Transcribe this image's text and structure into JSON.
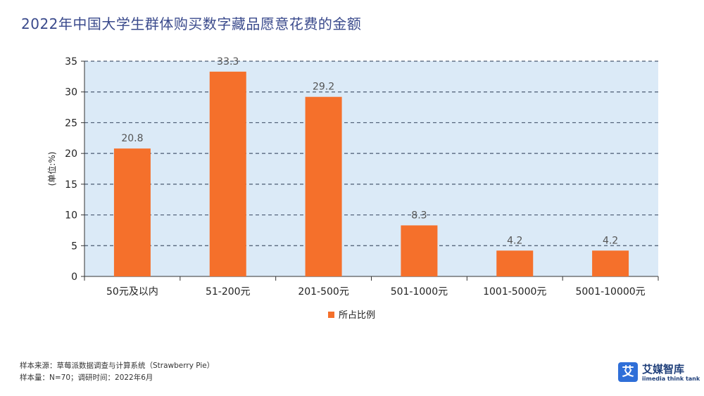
{
  "title": "2022年中国大学生群体购买数字藏品愿意花费的金额",
  "source_line1": "样本来源：草莓派数据调查与计算系统（Strawberry Pie）",
  "source_line2": "样本量：N=70；调研时间：2022年6月",
  "logo": {
    "name": "艾媒智库",
    "subtitle": "iimedia think tank",
    "mark": "艾"
  },
  "colors": {
    "bar": "#f5702b",
    "plot_bg": "#dbeaf7",
    "grid": "#4a5a72",
    "title": "#3a4a8c"
  },
  "chart_data": {
    "type": "bar",
    "title": "2022年中国大学生群体购买数字藏品愿意花费的金额",
    "ylabel": "(单位:%)",
    "xlabel": "",
    "categories": [
      "50元及以内",
      "51-200元",
      "201-500元",
      "501-1000元",
      "1001-5000元",
      "5001-10000元"
    ],
    "series": [
      {
        "name": "所占比例",
        "values": [
          20.8,
          33.3,
          29.2,
          8.3,
          4.2,
          4.2
        ]
      }
    ],
    "ylim": [
      0,
      35
    ],
    "yticks": [
      0,
      5,
      10,
      15,
      20,
      25,
      30,
      35
    ],
    "grid": true,
    "legend": "bottom"
  }
}
